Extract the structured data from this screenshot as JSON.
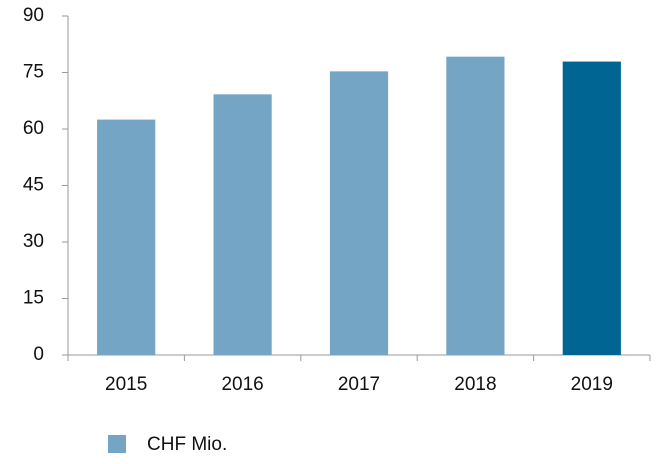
{
  "chart_data": {
    "type": "bar",
    "categories": [
      "2015",
      "2016",
      "2017",
      "2018",
      "2019"
    ],
    "series": [
      {
        "name": "CHF Mio.",
        "color": "#74a5c5",
        "values": [
          62.5,
          69.2,
          75.3,
          79.2,
          77.9
        ]
      }
    ],
    "colors": [
      "#74a5c5",
      "#74a5c5",
      "#74a5c5",
      "#74a5c5",
      "#006593"
    ],
    "ylim": [
      0,
      90
    ],
    "yticks": [
      0,
      15,
      30,
      45,
      60,
      75,
      90
    ],
    "grid": false,
    "legend": "bottom"
  }
}
